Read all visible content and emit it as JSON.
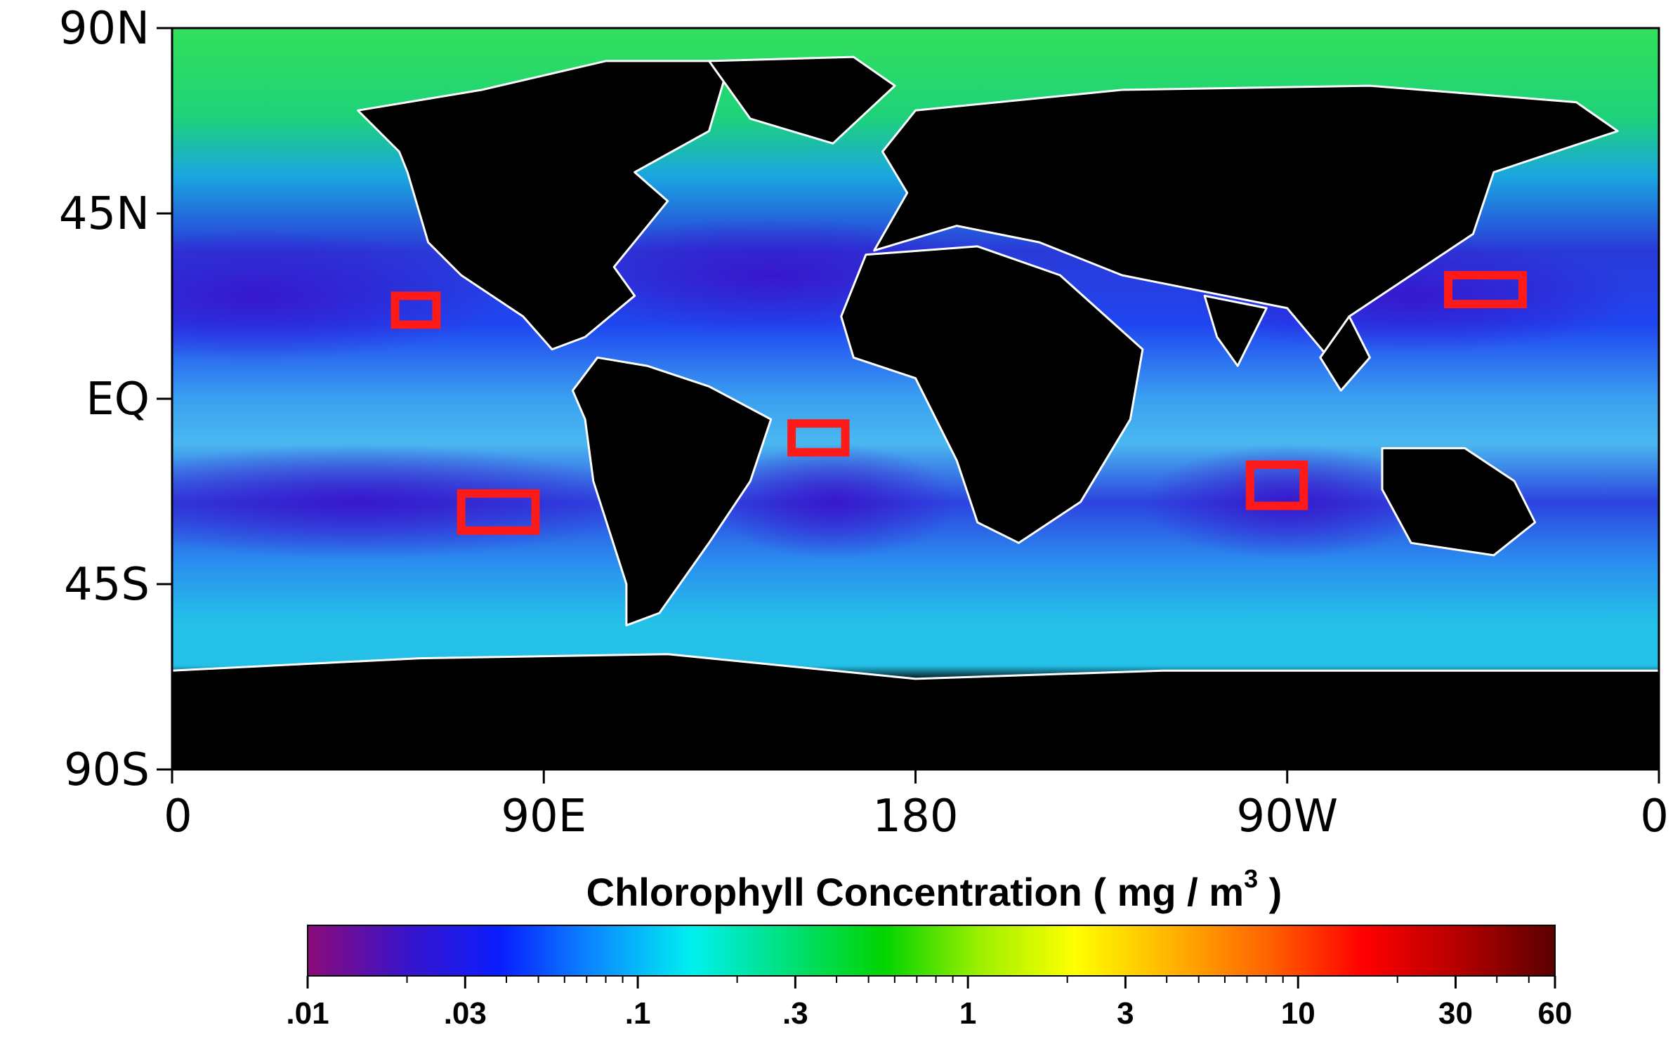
{
  "map": {
    "lat_labels": [
      "90N",
      "45N",
      "EQ",
      "45S",
      "90S"
    ],
    "lat_values": [
      90,
      45,
      0,
      -45,
      -90
    ],
    "lon_labels": [
      "0",
      "90E",
      "180",
      "90W",
      "0"
    ],
    "lon_values": [
      0,
      90,
      180,
      270,
      360
    ],
    "colors": {
      "land": "#000000",
      "coastline": "#ffffff",
      "box": "#ff1a1a"
    },
    "regions": [
      {
        "lon_min": 54,
        "lon_max": 64,
        "lat_min": 18,
        "lat_max": 25
      },
      {
        "lon_min": 70,
        "lon_max": 88,
        "lat_min": -32,
        "lat_max": -23
      },
      {
        "lon_min": 150,
        "lon_max": 163,
        "lat_min": -13,
        "lat_max": -6
      },
      {
        "lon_min": 261,
        "lon_max": 274,
        "lat_min": -26,
        "lat_max": -16
      },
      {
        "lon_min": 309,
        "lon_max": 327,
        "lat_min": 23,
        "lat_max": 30
      }
    ]
  },
  "colorbar": {
    "title_main": "Chlorophyll Concentration  ( mg / m",
    "title_sup": "3",
    "title_end": " )",
    "ticks": [
      ".01",
      ".03",
      ".1",
      ".3",
      "1",
      "3",
      "10",
      "30",
      "60"
    ],
    "tick_values": [
      0.01,
      0.03,
      0.1,
      0.3,
      1,
      3,
      10,
      30,
      60
    ],
    "scale": "log",
    "range": [
      0.01,
      60
    ],
    "colors": [
      "#8b0a78",
      "#3b14c8",
      "#0a1eff",
      "#0a8cff",
      "#00f0f0",
      "#00e07a",
      "#00d400",
      "#9cf000",
      "#ffff00",
      "#ffb400",
      "#ff6400",
      "#ff0000",
      "#b40000",
      "#5a0000"
    ]
  }
}
